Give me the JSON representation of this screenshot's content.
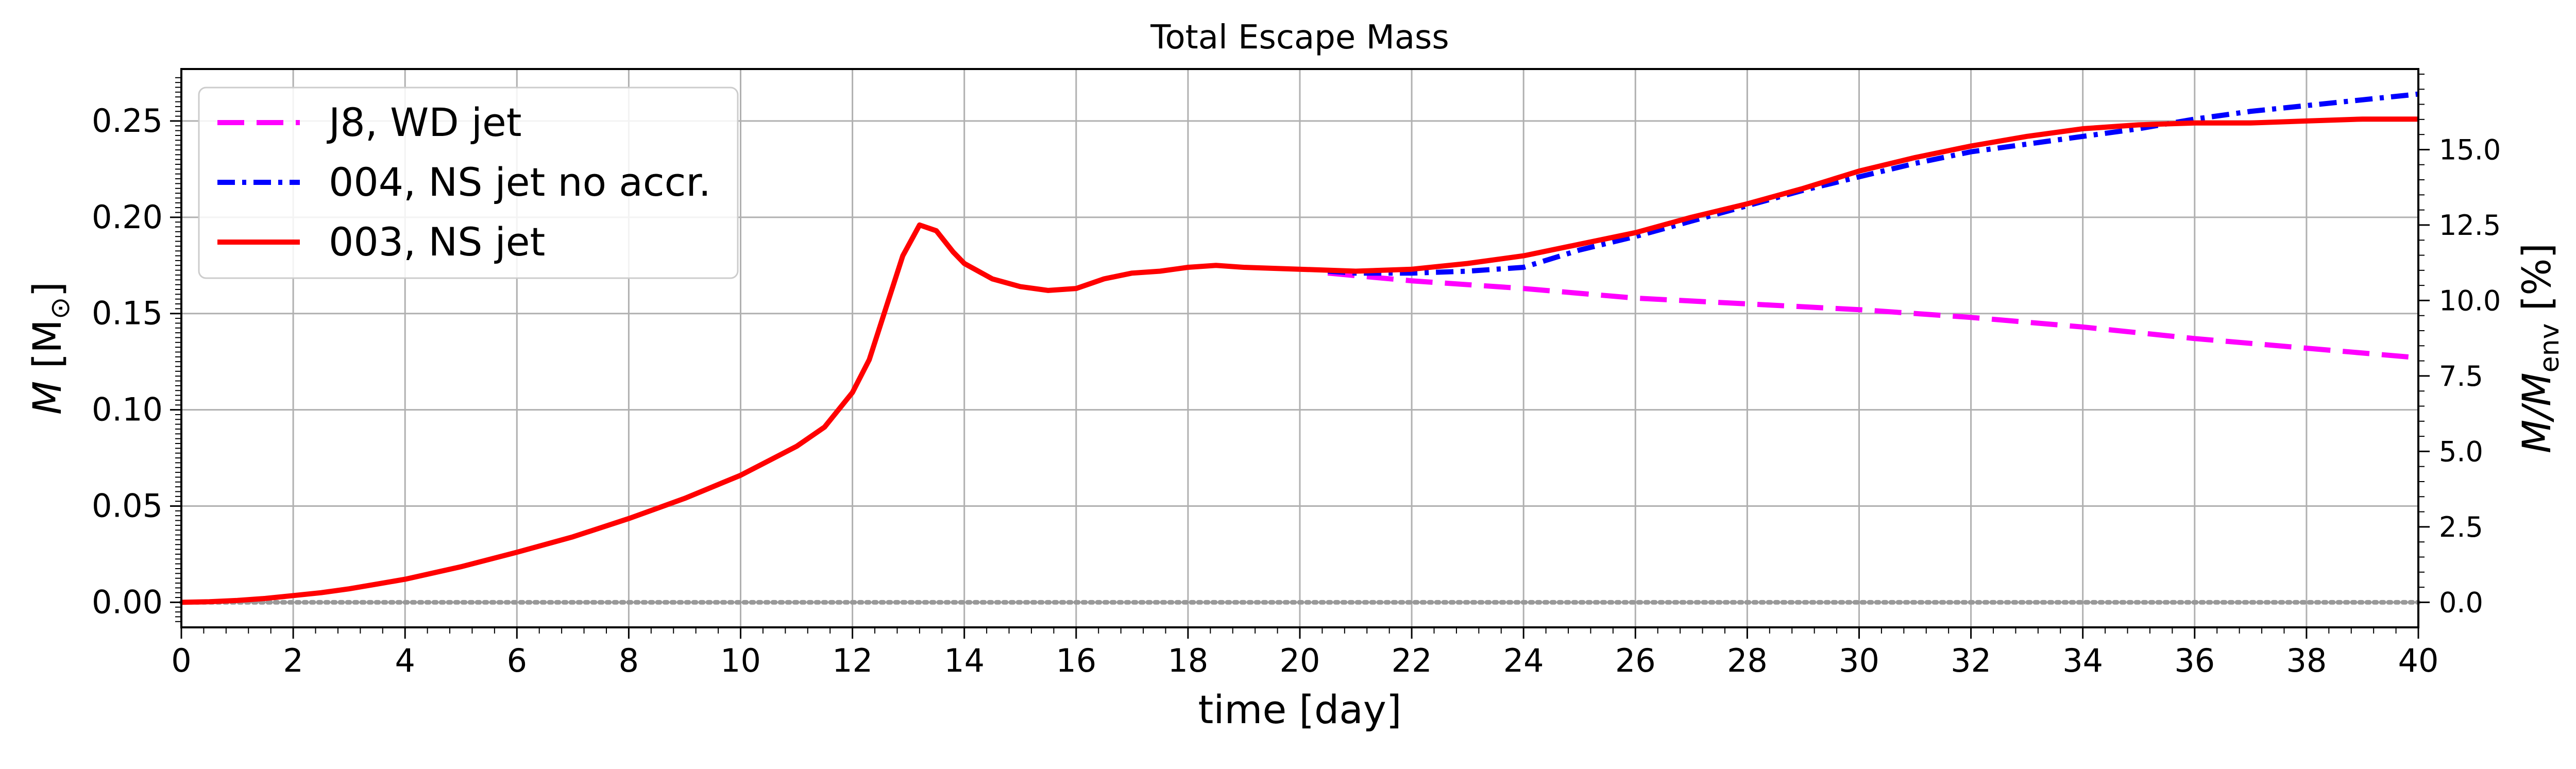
{
  "chart_data": {
    "type": "line",
    "title": "Total Escape Mass",
    "xlabel": "time [day]",
    "ylabel": "M [M☉]",
    "ylabel_parts": {
      "sym": "M",
      "open": " [M",
      "sub": "⊙",
      "close": "]"
    },
    "y2label": "M/Menv [%]",
    "y2label_parts": {
      "sym": "M/M",
      "sub": "env",
      "close": " [%]"
    },
    "xlim": [
      0,
      40
    ],
    "ylim": [
      -0.013,
      0.277
    ],
    "y2lim": [
      -0.83,
      17.67
    ],
    "xticks": [
      "0",
      "2",
      "4",
      "6",
      "8",
      "10",
      "12",
      "14",
      "16",
      "18",
      "20",
      "22",
      "24",
      "26",
      "28",
      "30",
      "32",
      "34",
      "36",
      "38",
      "40"
    ],
    "yticks": [
      "0.00",
      "0.05",
      "0.10",
      "0.15",
      "0.20",
      "0.25"
    ],
    "y2ticks": [
      "0.0",
      "2.5",
      "5.0",
      "7.5",
      "10.0",
      "12.5",
      "15.0"
    ],
    "grid": true,
    "legend_position": "top-left",
    "series": [
      {
        "name": "J8, WD jet",
        "color": "#ff00ff",
        "style": "dashed",
        "x": [
          20.5,
          22,
          24,
          26,
          28,
          30,
          32,
          34,
          36,
          38,
          40
        ],
        "y": [
          0.171,
          0.167,
          0.163,
          0.158,
          0.155,
          0.152,
          0.148,
          0.143,
          0.137,
          0.132,
          0.127
        ]
      },
      {
        "name": "004, NS jet no accr.",
        "color": "#0000ff",
        "style": "dashdot",
        "x": [
          20.5,
          21,
          22,
          23,
          24,
          25,
          26,
          27,
          28,
          29,
          30,
          31,
          32,
          33,
          34,
          35,
          36,
          37,
          38,
          39,
          40
        ],
        "y": [
          0.172,
          0.171,
          0.171,
          0.172,
          0.174,
          0.183,
          0.19,
          0.198,
          0.206,
          0.214,
          0.221,
          0.228,
          0.234,
          0.238,
          0.242,
          0.246,
          0.251,
          0.255,
          0.258,
          0.261,
          0.264
        ]
      },
      {
        "name": "003, NS jet",
        "color": "#ff0000",
        "style": "solid",
        "x": [
          0,
          0.5,
          1,
          1.5,
          2,
          2.5,
          3,
          3.5,
          4,
          5,
          6,
          7,
          8,
          9,
          10,
          10.5,
          11,
          11.5,
          12,
          12.3,
          12.6,
          12.9,
          13.2,
          13.5,
          13.8,
          14,
          14.5,
          15,
          15.5,
          16,
          16.5,
          17,
          17.5,
          18,
          18.5,
          19,
          20,
          21,
          22,
          23,
          24,
          25,
          26,
          27,
          28,
          29,
          30,
          31,
          32,
          33,
          34,
          35,
          36,
          37,
          38,
          39,
          40
        ],
        "y": [
          0.0,
          0.0003,
          0.001,
          0.002,
          0.0035,
          0.005,
          0.007,
          0.0095,
          0.012,
          0.0185,
          0.026,
          0.034,
          0.0435,
          0.054,
          0.066,
          0.0735,
          0.081,
          0.091,
          0.109,
          0.126,
          0.153,
          0.18,
          0.196,
          0.193,
          0.182,
          0.176,
          0.168,
          0.164,
          0.162,
          0.163,
          0.168,
          0.171,
          0.172,
          0.174,
          0.175,
          0.174,
          0.173,
          0.172,
          0.173,
          0.176,
          0.18,
          0.186,
          0.192,
          0.2,
          0.207,
          0.215,
          0.224,
          0.231,
          0.237,
          0.242,
          0.246,
          0.248,
          0.249,
          0.249,
          0.25,
          0.251,
          0.251
        ]
      }
    ],
    "reference_line": {
      "y": 0.0,
      "color": "#999999",
      "style": "dotted"
    }
  }
}
